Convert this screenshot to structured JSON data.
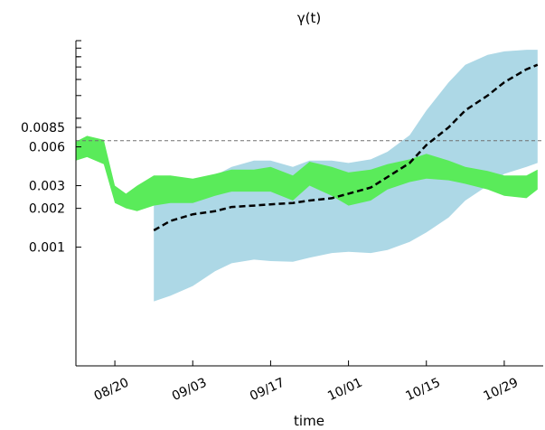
{
  "chart_data": {
    "type": "area",
    "title": "γ(t)",
    "xlabel": "time",
    "ylabel": "",
    "y_scale": "log",
    "ylim": [
      0.00012,
      0.04
    ],
    "xlim": [
      "2020-08-13",
      "2020-11-05"
    ],
    "x_tick_labels": [
      {
        "date": "2020-08-20",
        "label": "08/20"
      },
      {
        "date": "2020-09-03",
        "label": "09/03"
      },
      {
        "date": "2020-09-17",
        "label": "09/17"
      },
      {
        "date": "2020-10-01",
        "label": "10/01"
      },
      {
        "date": "2020-10-15",
        "label": "10/15"
      },
      {
        "date": "2020-10-29",
        "label": "10/29"
      }
    ],
    "y_tick_labels": [
      {
        "value": 0.0085,
        "label": "0.0085"
      },
      {
        "value": 0.006,
        "label": "0.006"
      },
      {
        "value": 0.003,
        "label": "0.003"
      },
      {
        "value": 0.002,
        "label": "0.002"
      },
      {
        "value": 0.001,
        "label": "0.001"
      }
    ],
    "reference_line": {
      "value": 0.0067,
      "style": "dashed",
      "color": "#707070"
    },
    "grid": false,
    "series": [
      {
        "kind": "band",
        "color": "#add8e6",
        "x": [
          "2020-08-27",
          "2020-08-30",
          "2020-09-03",
          "2020-09-07",
          "2020-09-10",
          "2020-09-14",
          "2020-09-17",
          "2020-09-21",
          "2020-09-24",
          "2020-09-28",
          "2020-10-01",
          "2020-10-05",
          "2020-10-08",
          "2020-10-12",
          "2020-10-15",
          "2020-10-19",
          "2020-10-22",
          "2020-10-26",
          "2020-10-29",
          "2020-11-02",
          "2020-11-04"
        ],
        "upper": [
          0.0021,
          0.0023,
          0.0025,
          0.0036,
          0.0042,
          0.0047,
          0.0047,
          0.0042,
          0.0047,
          0.0047,
          0.0045,
          0.0048,
          0.0055,
          0.0074,
          0.0115,
          0.019,
          0.026,
          0.031,
          0.033,
          0.034,
          0.034
        ],
        "lower": [
          0.00038,
          0.00042,
          0.0005,
          0.00065,
          0.00075,
          0.0008,
          0.00078,
          0.00077,
          0.00083,
          0.0009,
          0.00092,
          0.0009,
          0.00095,
          0.0011,
          0.0013,
          0.0017,
          0.0023,
          0.003,
          0.0037,
          0.0042,
          0.0045
        ]
      },
      {
        "kind": "band",
        "color": "#5aeb5a",
        "x": [
          "2020-08-13",
          "2020-08-15",
          "2020-08-18",
          "2020-08-20",
          "2020-08-22",
          "2020-08-24",
          "2020-08-27",
          "2020-08-30",
          "2020-09-03",
          "2020-09-07",
          "2020-09-10",
          "2020-09-14",
          "2020-09-17",
          "2020-09-21",
          "2020-09-24",
          "2020-09-28",
          "2020-10-01",
          "2020-10-05",
          "2020-10-08",
          "2020-10-12",
          "2020-10-15",
          "2020-10-19",
          "2020-10-22",
          "2020-10-26",
          "2020-10-29",
          "2020-11-02",
          "2020-11-04"
        ],
        "upper": [
          0.0066,
          0.0073,
          0.0068,
          0.003,
          0.0026,
          0.003,
          0.0036,
          0.0036,
          0.0034,
          0.0037,
          0.004,
          0.004,
          0.0042,
          0.0036,
          0.0046,
          0.0042,
          0.0038,
          0.004,
          0.0044,
          0.0048,
          0.0053,
          0.0047,
          0.0042,
          0.0039,
          0.0036,
          0.0036,
          0.004
        ],
        "lower": [
          0.0047,
          0.005,
          0.0044,
          0.0022,
          0.002,
          0.0019,
          0.0021,
          0.0022,
          0.0022,
          0.0025,
          0.0027,
          0.0027,
          0.0027,
          0.0023,
          0.003,
          0.0025,
          0.0021,
          0.0023,
          0.0028,
          0.0032,
          0.0034,
          0.0033,
          0.0031,
          0.0028,
          0.0025,
          0.0024,
          0.0028
        ]
      },
      {
        "kind": "line",
        "color": "#000000",
        "style": "dashed",
        "x": [
          "2020-08-27",
          "2020-08-30",
          "2020-09-03",
          "2020-09-07",
          "2020-09-10",
          "2020-09-14",
          "2020-09-17",
          "2020-09-21",
          "2020-09-24",
          "2020-09-28",
          "2020-10-01",
          "2020-10-05",
          "2020-10-08",
          "2020-10-12",
          "2020-10-15",
          "2020-10-19",
          "2020-10-22",
          "2020-10-26",
          "2020-10-29",
          "2020-11-02",
          "2020-11-04"
        ],
        "values": [
          0.00135,
          0.0016,
          0.0018,
          0.0019,
          0.00205,
          0.0021,
          0.00215,
          0.0022,
          0.0023,
          0.0024,
          0.0026,
          0.0029,
          0.0035,
          0.0045,
          0.0062,
          0.0085,
          0.0115,
          0.015,
          0.019,
          0.024,
          0.026
        ]
      }
    ]
  }
}
